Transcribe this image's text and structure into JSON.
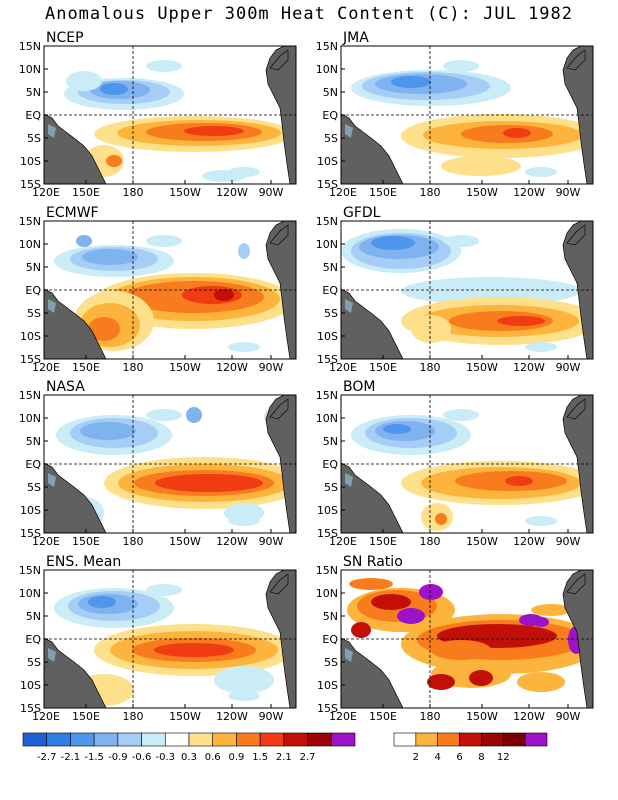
{
  "title": "Anomalous Upper 300m Heat Content (C): JUL 1982",
  "lat_labels": [
    "15N",
    "10N",
    "5N",
    "EQ",
    "5S",
    "10S",
    "15S"
  ],
  "lon_labels": [
    "120E",
    "150E",
    "180",
    "150W",
    "120W",
    "90W"
  ],
  "panels": [
    {
      "label": "NCEP"
    },
    {
      "label": "JMA"
    },
    {
      "label": "ECMWF"
    },
    {
      "label": "GFDL"
    },
    {
      "label": "NASA"
    },
    {
      "label": "BOM"
    },
    {
      "label": "ENS. Mean"
    },
    {
      "label": "SN Ratio"
    }
  ],
  "colorbar_anomaly": {
    "colors": [
      "#1f62d8",
      "#2f7ee6",
      "#4e95ec",
      "#7fb3f0",
      "#a6cdf5",
      "#c9ecf7",
      "#ffffff",
      "#fee08a",
      "#fdb43c",
      "#f87c1e",
      "#f03c12",
      "#c21008",
      "#9a0404",
      "#9b12c8"
    ],
    "labels": [
      "-2.7",
      "-2.1",
      "-1.5",
      "-0.9",
      "-0.6",
      "-0.3",
      "0.3",
      "0.6",
      "0.9",
      "1.5",
      "2.1",
      "2.7"
    ]
  },
  "colorbar_sn": {
    "colors": [
      "#ffffff",
      "#fdb43c",
      "#f87c1e",
      "#c21008",
      "#9a0404",
      "#7a0000",
      "#9b12c8"
    ],
    "labels": [
      "2",
      "4",
      "6",
      "8",
      "12"
    ]
  },
  "colors": {
    "land": "#606060",
    "land_edge": "#000000"
  }
}
